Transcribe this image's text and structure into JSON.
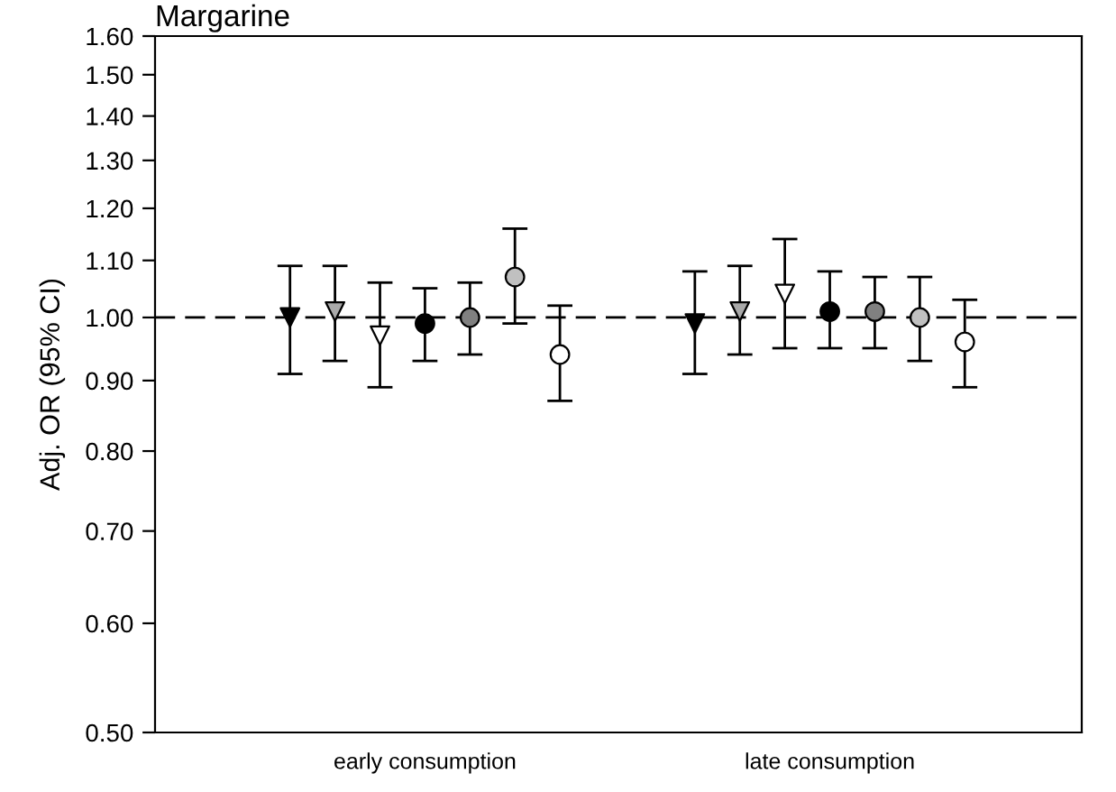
{
  "chart_data": {
    "type": "scatter",
    "title": "Margarine",
    "ylabel": "Adj. OR (95% CI)",
    "categories": [
      null,
      null,
      null,
      "early consumption",
      null,
      null,
      null,
      null,
      null,
      null,
      null,
      null,
      "late consumption",
      null,
      null,
      null
    ],
    "log": "y",
    "ylim": [
      0.5,
      1.6
    ],
    "yticks": [
      {
        "value": 0.5,
        "label": "0.50"
      },
      {
        "value": 0.6,
        "label": "0.60"
      },
      {
        "value": 0.7,
        "label": "0.70"
      },
      {
        "value": 0.8,
        "label": "0.80"
      },
      {
        "value": 0.9,
        "label": "0.90"
      },
      {
        "value": 1.0,
        "label": "1.00"
      },
      {
        "value": 1.1,
        "label": "1.10"
      },
      {
        "value": 1.2,
        "label": "1.20"
      },
      {
        "value": 1.3,
        "label": "1.30"
      },
      {
        "value": 1.4,
        "label": "1.40"
      },
      {
        "value": 1.5,
        "label": "1.50"
      },
      {
        "value": 1.6,
        "label": "1.60"
      }
    ],
    "grid": false,
    "legend": false,
    "ref_lines": [
      {
        "axis": "y",
        "value": 1.0,
        "color": "#000000",
        "line_style": "dashed"
      }
    ],
    "series": [
      {
        "color": "#000000",
        "marker": "triangle",
        "values": [
          1.0,
          null,
          null,
          null,
          null,
          null,
          null,
          null,
          null,
          0.99,
          null,
          null,
          null,
          null,
          null,
          null
        ],
        "errors": [
          [
            0.91,
            1.09
          ],
          null,
          null,
          null,
          null,
          null,
          null,
          null,
          null,
          [
            0.91,
            1.08
          ],
          null,
          null,
          null,
          null,
          null,
          null
        ]
      },
      {
        "color": "#aaaaaa",
        "marker": "triangle",
        "values": [
          null,
          1.01,
          null,
          null,
          null,
          null,
          null,
          null,
          null,
          null,
          1.01,
          null,
          null,
          null,
          null,
          null
        ],
        "errors": [
          null,
          [
            0.93,
            1.09
          ],
          null,
          null,
          null,
          null,
          null,
          null,
          null,
          null,
          [
            0.94,
            1.09
          ],
          null,
          null,
          null,
          null,
          null
        ]
      },
      {
        "color": "#ffffff",
        "marker": "triangle",
        "values": [
          null,
          null,
          0.97,
          null,
          null,
          null,
          null,
          null,
          null,
          null,
          null,
          1.04,
          null,
          null,
          null,
          null
        ],
        "errors": [
          null,
          null,
          [
            0.89,
            1.06
          ],
          null,
          null,
          null,
          null,
          null,
          null,
          null,
          null,
          [
            0.95,
            1.14
          ],
          null,
          null,
          null,
          null
        ]
      },
      {
        "color": "#000000",
        "marker": "circle",
        "values": [
          null,
          null,
          null,
          0.99,
          null,
          null,
          null,
          null,
          null,
          null,
          null,
          null,
          1.01,
          null,
          null,
          null
        ],
        "errors": [
          null,
          null,
          null,
          [
            0.93,
            1.05
          ],
          null,
          null,
          null,
          null,
          null,
          null,
          null,
          null,
          [
            0.95,
            1.08
          ],
          null,
          null,
          null
        ]
      },
      {
        "color": "#808080",
        "marker": "circle",
        "values": [
          null,
          null,
          null,
          null,
          1.0,
          null,
          null,
          null,
          null,
          null,
          null,
          null,
          null,
          1.01,
          null,
          null
        ],
        "errors": [
          null,
          null,
          null,
          null,
          [
            0.94,
            1.06
          ],
          null,
          null,
          null,
          null,
          null,
          null,
          null,
          null,
          [
            0.95,
            1.07
          ],
          null,
          null
        ]
      },
      {
        "color": "#c0c0c0",
        "marker": "circle",
        "values": [
          null,
          null,
          null,
          null,
          null,
          1.07,
          null,
          null,
          null,
          null,
          null,
          null,
          null,
          null,
          1.0,
          null
        ],
        "errors": [
          null,
          null,
          null,
          null,
          null,
          [
            0.99,
            1.16
          ],
          null,
          null,
          null,
          null,
          null,
          null,
          null,
          null,
          [
            0.93,
            1.07
          ],
          null
        ]
      },
      {
        "color": "#ffffff",
        "marker": "circle",
        "values": [
          null,
          null,
          null,
          null,
          null,
          null,
          0.94,
          null,
          null,
          null,
          null,
          null,
          null,
          null,
          null,
          0.96
        ],
        "errors": [
          null,
          null,
          null,
          null,
          null,
          null,
          [
            0.87,
            1.02
          ],
          null,
          null,
          null,
          null,
          null,
          null,
          null,
          null,
          [
            0.89,
            1.03
          ]
        ]
      }
    ]
  }
}
